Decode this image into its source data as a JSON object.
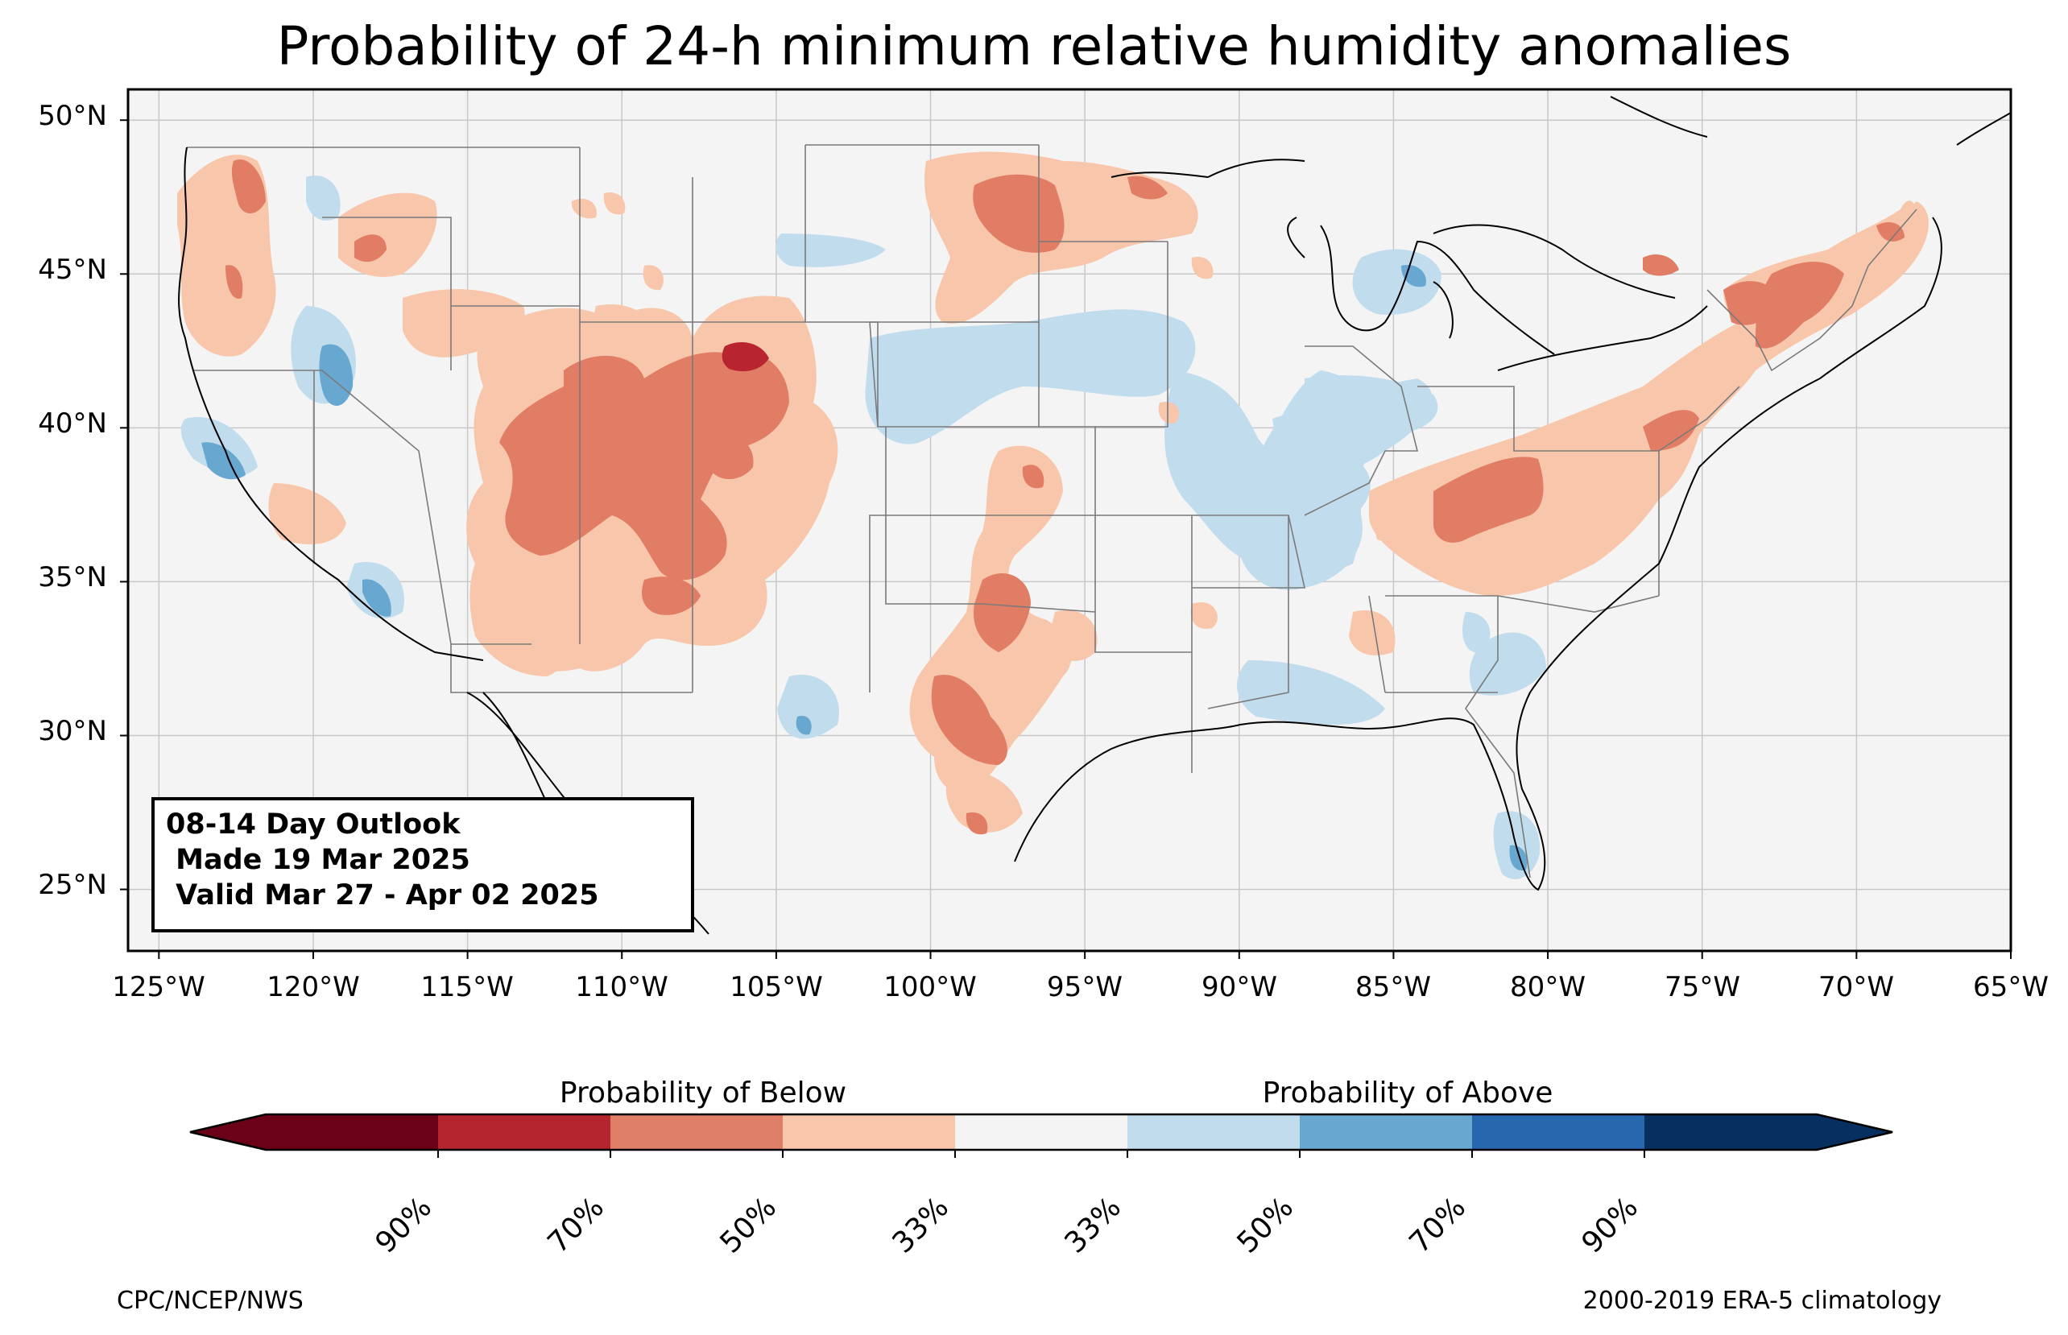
{
  "title": "Probability of 24-h minimum relative humidity anomalies",
  "map": {
    "lon_range": [
      -126,
      -65
    ],
    "lat_range": [
      23,
      51
    ],
    "lat_labels": [
      "50°N",
      "45°N",
      "40°N",
      "35°N",
      "30°N",
      "25°N"
    ],
    "lon_labels": [
      "125°W",
      "120°W",
      "115°W",
      "110°W",
      "105°W",
      "100°W",
      "95°W",
      "90°W",
      "85°W",
      "80°W",
      "75°W",
      "70°W",
      "65°W"
    ],
    "background_color": "#f4f4f4",
    "grid": true,
    "regions": {
      "below_33": "#f8c6aa",
      "below_50": "#e07d64",
      "below_70": "#b82530",
      "above_33": "#c1dcec",
      "above_50": "#68a8d0"
    }
  },
  "outlook": {
    "line1": "08-14 Day Outlook",
    "line2": " Made 19 Mar 2025",
    "line3": " Valid Mar 27 - Apr 02 2025"
  },
  "colorbar": {
    "below_label": "Probability of Below",
    "above_label": "Probability of Above",
    "colors": [
      "#6b0019",
      "#b4252f",
      "#e07f67",
      "#f8c6aa",
      "#f4f4f4",
      "#c1dcec",
      "#68a8d0",
      "#2767ad",
      "#072f60"
    ],
    "tick_labels": [
      "90%",
      "70%",
      "50%",
      "33%",
      "33%",
      "50%",
      "70%",
      "90%"
    ]
  },
  "footer": {
    "left": "CPC/NCEP/NWS",
    "right": "2000-2019 ERA-5 climatology"
  }
}
